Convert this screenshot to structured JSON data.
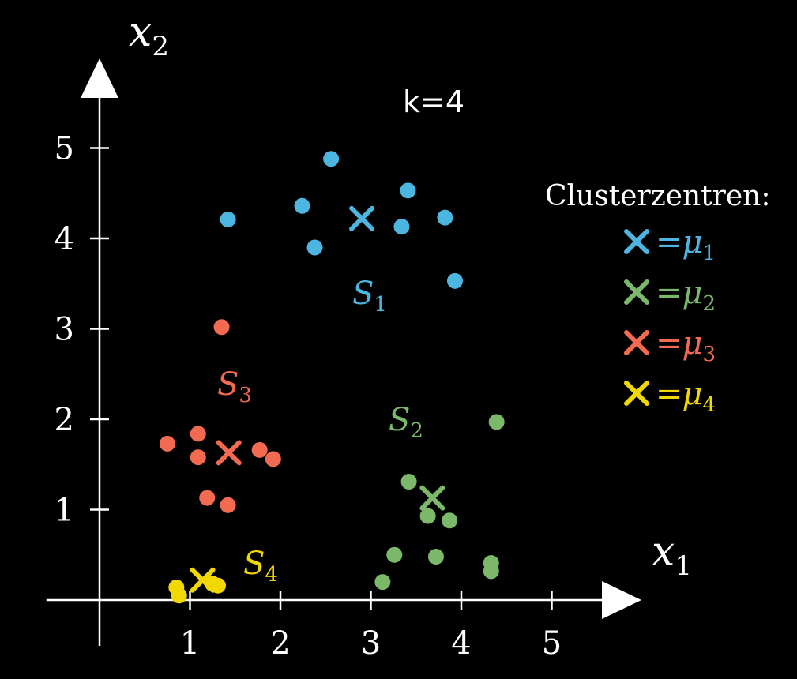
{
  "chart_data": {
    "type": "scatter",
    "title": "k=4",
    "xlabel": {
      "base": "x",
      "sub": "1"
    },
    "ylabel": {
      "base": "x",
      "sub": "2"
    },
    "xlim": [
      -0.5,
      6.0
    ],
    "ylim": [
      -0.5,
      6.2
    ],
    "xticks": [
      "1",
      "2",
      "3",
      "4",
      "5"
    ],
    "yticks": [
      "1",
      "2",
      "3",
      "4",
      "5"
    ],
    "grid": false,
    "legend_title": "Clusterzentren:",
    "legend_position": "right",
    "series": [
      {
        "label": {
          "base": "S",
          "sub": "1"
        },
        "color": "#4cb5e0",
        "centroid": {
          "x": 2.9,
          "y": 4.22
        },
        "legend": {
          "eq": "=",
          "base": "μ",
          "sub": "1"
        },
        "points": [
          {
            "x": 1.42,
            "y": 4.21
          },
          {
            "x": 2.24,
            "y": 4.36
          },
          {
            "x": 2.38,
            "y": 3.9
          },
          {
            "x": 2.56,
            "y": 4.88
          },
          {
            "x": 3.34,
            "y": 4.13
          },
          {
            "x": 3.41,
            "y": 4.53
          },
          {
            "x": 3.82,
            "y": 4.23
          },
          {
            "x": 3.93,
            "y": 3.53
          }
        ]
      },
      {
        "label": {
          "base": "S",
          "sub": "2"
        },
        "color": "#7cb86a",
        "centroid": {
          "x": 3.68,
          "y": 1.13
        },
        "legend": {
          "eq": "=",
          "base": "μ",
          "sub": "2"
        },
        "points": [
          {
            "x": 4.39,
            "y": 1.97
          },
          {
            "x": 3.42,
            "y": 1.31
          },
          {
            "x": 3.63,
            "y": 0.93
          },
          {
            "x": 3.87,
            "y": 0.88
          },
          {
            "x": 3.26,
            "y": 0.5
          },
          {
            "x": 3.72,
            "y": 0.48
          },
          {
            "x": 3.13,
            "y": 0.2
          },
          {
            "x": 4.33,
            "y": 0.41
          },
          {
            "x": 4.33,
            "y": 0.32
          }
        ]
      },
      {
        "label": {
          "base": "S",
          "sub": "3"
        },
        "color": "#f26a4f",
        "centroid": {
          "x": 1.43,
          "y": 1.63
        },
        "legend": {
          "eq": "=",
          "base": "μ",
          "sub": "3"
        },
        "points": [
          {
            "x": 1.35,
            "y": 3.02
          },
          {
            "x": 0.75,
            "y": 1.73
          },
          {
            "x": 1.09,
            "y": 1.84
          },
          {
            "x": 1.09,
            "y": 1.58
          },
          {
            "x": 1.77,
            "y": 1.66
          },
          {
            "x": 1.92,
            "y": 1.56
          },
          {
            "x": 1.19,
            "y": 1.13
          },
          {
            "x": 1.42,
            "y": 1.05
          }
        ]
      },
      {
        "label": {
          "base": "S",
          "sub": "4"
        },
        "color": "#f0d800",
        "centroid": {
          "x": 1.14,
          "y": 0.22
        },
        "legend": {
          "eq": "=",
          "base": "μ",
          "sub": "4"
        },
        "points": [
          {
            "x": 0.85,
            "y": 0.14
          },
          {
            "x": 0.88,
            "y": 0.05
          },
          {
            "x": 1.25,
            "y": 0.18
          },
          {
            "x": 1.31,
            "y": 0.16
          }
        ]
      }
    ]
  }
}
